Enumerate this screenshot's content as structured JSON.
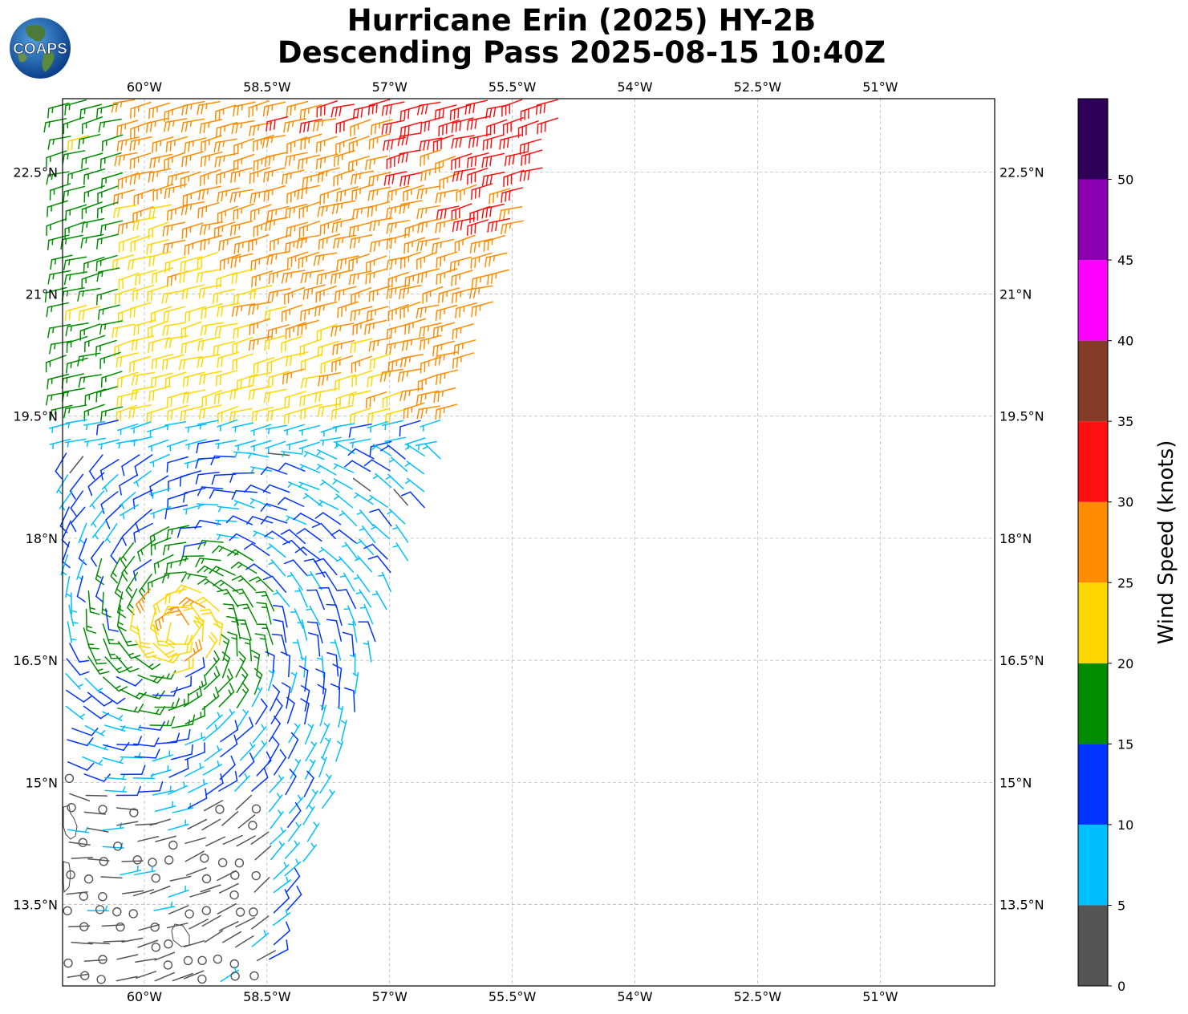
{
  "title": {
    "line1": "Hurricane Erin (2025) HY-2B",
    "line2": "Descending Pass 2025-08-15 10:40Z"
  },
  "logo": {
    "text": "COAPS"
  },
  "map": {
    "lon_range": [
      -61.0,
      -49.6
    ],
    "lat_range": [
      12.5,
      23.4
    ],
    "lon_ticks": [
      {
        "value": -60.0,
        "label": "60°W"
      },
      {
        "value": -58.5,
        "label": "58.5°W"
      },
      {
        "value": -57.0,
        "label": "57°W"
      },
      {
        "value": -55.5,
        "label": "55.5°W"
      },
      {
        "value": -54.0,
        "label": "54°W"
      },
      {
        "value": -52.5,
        "label": "52.5°W"
      },
      {
        "value": -51.0,
        "label": "51°W"
      }
    ],
    "lat_ticks": [
      {
        "value": 22.5,
        "label": "22.5°N"
      },
      {
        "value": 21.0,
        "label": "21°N"
      },
      {
        "value": 19.5,
        "label": "19.5°N"
      },
      {
        "value": 18.0,
        "label": "18°N"
      },
      {
        "value": 16.5,
        "label": "16.5°N"
      },
      {
        "value": 15.0,
        "label": "15°N"
      },
      {
        "value": 13.5,
        "label": "13.5°N"
      }
    ],
    "storm_center": {
      "lon": -59.6,
      "lat": 16.9
    },
    "gridlines": true
  },
  "colorbar": {
    "label": "Wind Speed (knots)",
    "ticks": [
      "0",
      "5",
      "10",
      "15",
      "20",
      "25",
      "30",
      "35",
      "40",
      "45",
      "50"
    ],
    "bins": [
      {
        "from": 0,
        "to": 5,
        "color": "#555555"
      },
      {
        "from": 5,
        "to": 10,
        "color": "#00bfff"
      },
      {
        "from": 10,
        "to": 15,
        "color": "#0033ff"
      },
      {
        "from": 15,
        "to": 20,
        "color": "#008c00"
      },
      {
        "from": 20,
        "to": 25,
        "color": "#ffd700"
      },
      {
        "from": 25,
        "to": 30,
        "color": "#ff8c00"
      },
      {
        "from": 30,
        "to": 35,
        "color": "#ff1010"
      },
      {
        "from": 35,
        "to": 40,
        "color": "#833c28"
      },
      {
        "from": 40,
        "to": 45,
        "color": "#ff00ff"
      },
      {
        "from": 45,
        "to": 50,
        "color": "#8a00b0"
      },
      {
        "from": 50,
        "to": 55,
        "color": "#2e0057"
      }
    ]
  }
}
